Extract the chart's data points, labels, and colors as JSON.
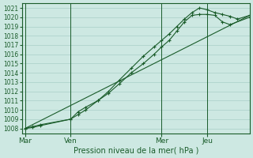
{
  "background_color": "#cde8e2",
  "grid_color": "#a8cfc8",
  "line_color": "#1a5c2a",
  "marker_color": "#1a5c2a",
  "xlabel": "Pression niveau de la mer( hPa )",
  "ylim": [
    1007.5,
    1021.5
  ],
  "yticks": [
    1008,
    1009,
    1010,
    1011,
    1012,
    1013,
    1014,
    1015,
    1016,
    1017,
    1018,
    1019,
    1020,
    1021
  ],
  "xtick_labels": [
    "Mar",
    "Ven",
    "Mer",
    "Jeu"
  ],
  "xtick_positions": [
    0,
    30,
    90,
    120
  ],
  "xvlines": [
    0,
    30,
    90,
    120
  ],
  "xlim": [
    -2,
    148
  ],
  "series": [
    {
      "x": [
        0,
        148
      ],
      "y": [
        1008.0,
        1020.2
      ]
    },
    {
      "x": [
        0,
        5,
        10,
        30,
        35,
        40,
        48,
        55,
        62,
        70,
        78,
        85,
        90,
        95,
        100,
        105,
        110,
        115,
        120,
        125,
        130,
        135,
        140,
        148
      ],
      "y": [
        1008.0,
        1008.2,
        1008.4,
        1009.0,
        1009.8,
        1010.3,
        1011.0,
        1012.0,
        1013.2,
        1014.5,
        1015.8,
        1016.8,
        1017.5,
        1018.2,
        1019.0,
        1019.8,
        1020.5,
        1021.0,
        1020.8,
        1020.5,
        1020.3,
        1020.1,
        1019.8,
        1020.2
      ]
    },
    {
      "x": [
        0,
        5,
        10,
        30,
        35,
        40,
        48,
        55,
        62,
        70,
        78,
        85,
        90,
        95,
        100,
        105,
        110,
        115,
        120,
        125,
        130,
        135,
        148
      ],
      "y": [
        1008.0,
        1008.1,
        1008.3,
        1009.0,
        1009.5,
        1010.0,
        1011.0,
        1011.8,
        1012.8,
        1014.0,
        1015.0,
        1016.0,
        1016.8,
        1017.5,
        1018.5,
        1019.5,
        1020.2,
        1020.3,
        1020.3,
        1020.2,
        1019.5,
        1019.2,
        1020.0
      ]
    }
  ]
}
